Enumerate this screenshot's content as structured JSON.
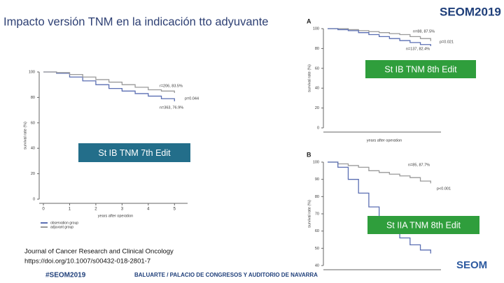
{
  "header": {
    "title": "Impacto versión TNM en la indicación tto adyuvante",
    "logo": "SEOM2019"
  },
  "labels": [
    "St IB TNM 7th Edit",
    "St IB TNM  8th Edit",
    "St IIA TNM 8th Edit"
  ],
  "citation": [
    "Journal of Cancer Research and Clinical Oncology",
    "https://doi.org/10.1007/s00432-018-2801-7"
  ],
  "footer": {
    "hashtag": "#SEOM2019",
    "venue": "BALUARTE / PALACIO DE CONGRESOS Y AUDITORIO DE NAVARRA",
    "logo": "SEOM"
  },
  "chart_data": [
    {
      "type": "line",
      "x_label": "years after operation",
      "y_label": "survival rate (%)",
      "x": [
        0,
        0.5,
        1,
        1.5,
        2,
        2.5,
        3,
        3.5,
        4,
        4.5,
        5
      ],
      "series": [
        {
          "name": "observation group",
          "color": "#5b6fb3",
          "values": [
            100,
            99,
            96,
            93,
            90,
            87,
            85,
            83,
            81,
            79,
            76.9
          ]
        },
        {
          "name": "adjuvant group",
          "color": "#9a9a9a",
          "values": [
            100,
            99.5,
            98,
            96,
            94,
            92,
            90,
            88,
            86,
            85,
            83.5
          ]
        }
      ],
      "annotations": [
        "r=206, 83.5%",
        "p=0.044",
        "n=363, 76.9%"
      ],
      "xlim": [
        0,
        5.5
      ],
      "xticks": [
        0,
        1,
        2,
        3,
        4,
        5
      ],
      "ylim": [
        0,
        100
      ],
      "yticks": [
        0,
        20,
        40,
        60,
        80,
        100
      ]
    },
    {
      "type": "line",
      "panel": "A",
      "x_label": "years after operation",
      "y_label": "survival rate (%)",
      "x": [
        0,
        0.5,
        1,
        1.5,
        2,
        2.5,
        3,
        3.5,
        4,
        4.5,
        5
      ],
      "series": [
        {
          "color": "#9a9a9a",
          "values": [
            100,
            100,
            99,
            98,
            97,
            96,
            95,
            94,
            92,
            90,
            87.5
          ]
        },
        {
          "color": "#5b6fb3",
          "values": [
            100,
            99,
            98,
            96,
            94,
            92,
            90,
            88,
            86,
            84,
            82.4
          ]
        }
      ],
      "annotations": [
        "n=88, 87.5%",
        "p=0.021",
        "n=137, 82.4%"
      ],
      "xlim": [
        0,
        5.5
      ],
      "ylim": [
        0,
        100
      ],
      "yticks": [
        0,
        20,
        40,
        60,
        80,
        100
      ]
    },
    {
      "type": "line",
      "panel": "B",
      "y_label": "survival rate (%)",
      "x": [
        0,
        0.5,
        1,
        1.5,
        2,
        2.5,
        3,
        3.5,
        4,
        4.5,
        5
      ],
      "series": [
        {
          "color": "#9a9a9a",
          "values": [
            100,
            99,
            98,
            97,
            95,
            94,
            93,
            92,
            91,
            89,
            87.7
          ]
        },
        {
          "color": "#5b6fb3",
          "values": [
            100,
            97,
            90,
            82,
            74,
            67,
            61,
            56,
            52,
            49,
            47
          ]
        }
      ],
      "annotations": [
        "n=85, 87.7%",
        "p<0.001"
      ],
      "xlim": [
        0,
        5.5
      ],
      "ylim": [
        40,
        100
      ],
      "yticks": [
        40,
        50,
        60,
        70,
        80,
        90,
        100
      ]
    }
  ]
}
